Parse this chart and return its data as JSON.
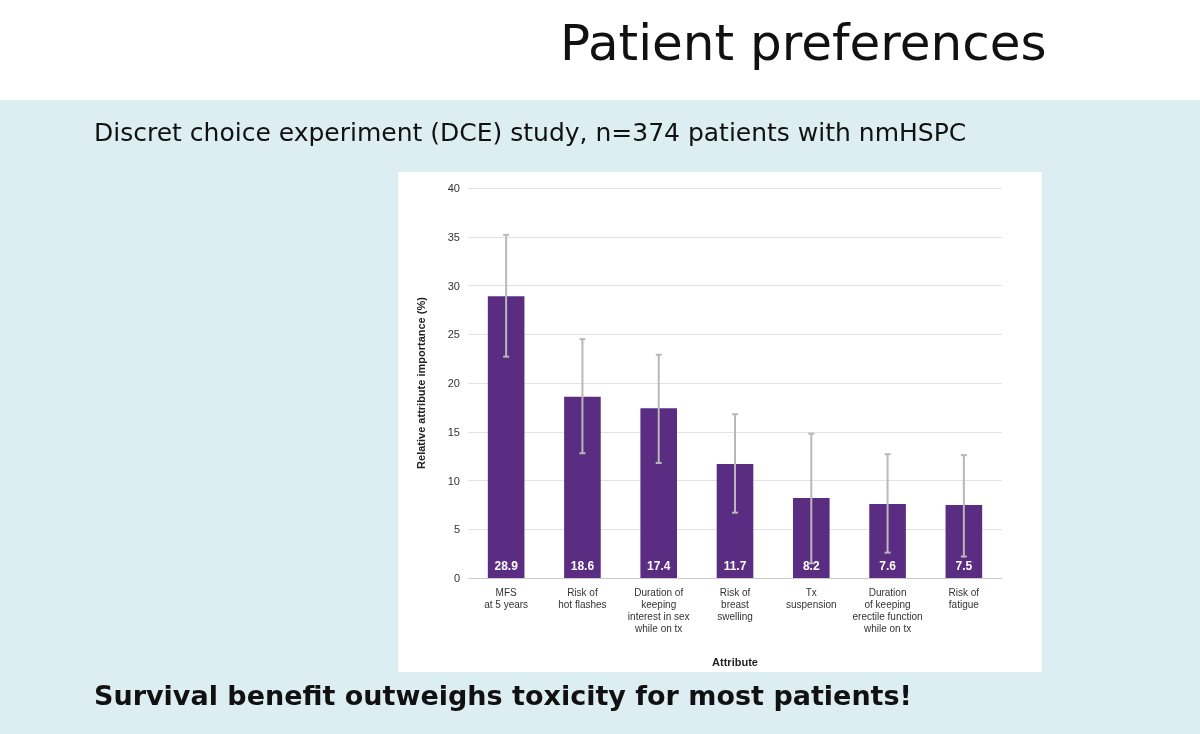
{
  "chart_data": {
    "type": "bar",
    "title": "Patient preferences",
    "subtitle": "Discret choice experiment (DCE) study, n=374 patients with nmHSPC",
    "xlabel": "Attribute",
    "ylabel": "Relative attribute importance (%)",
    "categories": [
      "MFS\nat 5 years",
      "Risk of\nhot flashes",
      "Duration of\nkeeping\ninterest in sex\nwhile on tx",
      "Risk of\nbreast\nswelling",
      "Tx\nsuspension",
      "Duration\nof keeping\nerectile function\nwhile on tx",
      "Risk of\nfatigue"
    ],
    "values": [
      28.9,
      18.6,
      17.4,
      11.7,
      8.2,
      7.6,
      7.5
    ],
    "errors": [
      [
        22.7,
        35.2
      ],
      [
        12.8,
        24.5
      ],
      [
        11.8,
        22.9
      ],
      [
        6.7,
        16.8
      ],
      [
        1.5,
        14.8
      ],
      [
        2.6,
        12.7
      ],
      [
        2.2,
        12.6
      ]
    ],
    "color": "#5b2d82",
    "data_labels": true,
    "ylim": [
      0,
      40
    ],
    "yticks": [
      0,
      5,
      10,
      15,
      20,
      25,
      30,
      35,
      40
    ],
    "grid": "y",
    "annotations": [
      "Survival benefit outweighs toxicity for most patients!"
    ]
  }
}
